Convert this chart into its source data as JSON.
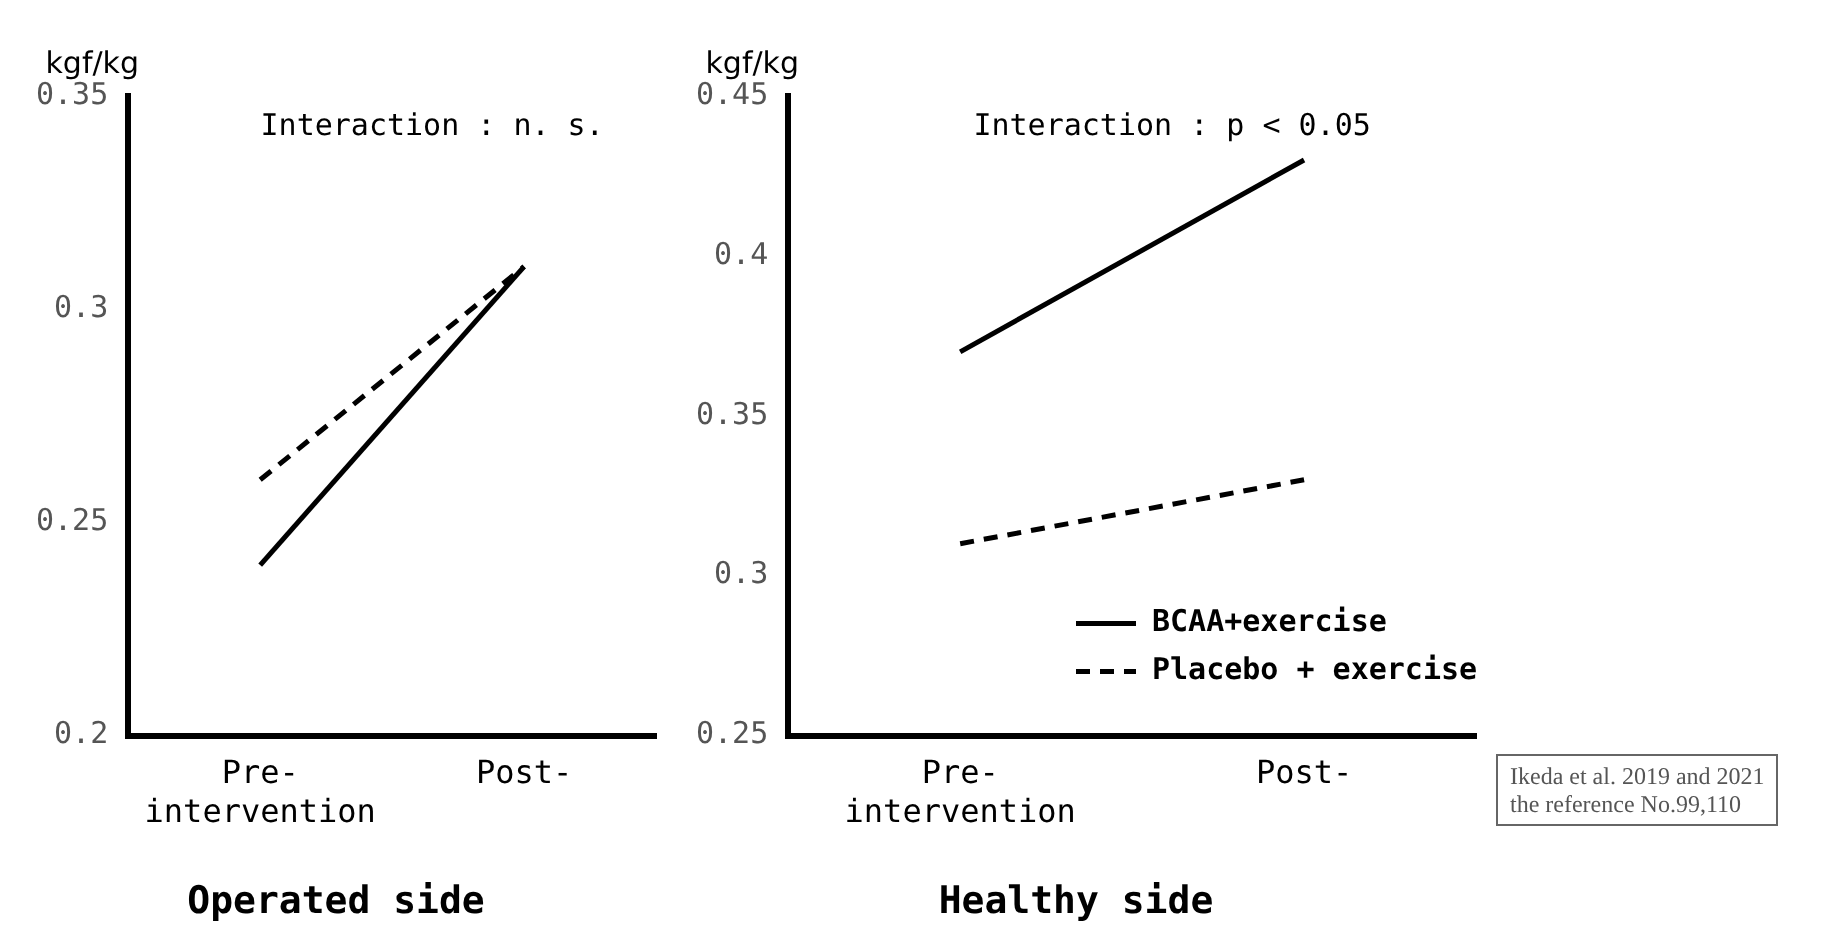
{
  "chart_data": [
    {
      "type": "line",
      "title": "Operated side",
      "ylabel": "kgf/kg",
      "categories": [
        "Pre-\nintervention",
        "Post-"
      ],
      "ylim": [
        0.2,
        0.35
      ],
      "yticks": [
        0.2,
        0.25,
        0.3,
        0.35
      ],
      "grid": false,
      "legend": false,
      "marker": "none",
      "annotations": [
        "Interaction : n. s."
      ],
      "series": [
        {
          "color": "#000000",
          "line_style": "solid",
          "values": [
            0.24,
            0.31
          ]
        },
        {
          "color": "#000000",
          "line_style": "dashed",
          "values": [
            0.26,
            0.31
          ]
        }
      ]
    },
    {
      "type": "line",
      "title": "Healthy side",
      "ylabel": "kgf/kg",
      "categories": [
        "Pre-\nintervention",
        "Post-"
      ],
      "ylim": [
        0.25,
        0.45
      ],
      "yticks": [
        0.25,
        0.3,
        0.35,
        0.4,
        0.45
      ],
      "grid": false,
      "legend": "bottom right",
      "marker": "none",
      "annotations": [
        "Interaction : p < 0.05",
        "Ikeda et al. 2019 and 2021\nthe reference No.99,110"
      ],
      "series": [
        {
          "name": "BCAA+exercise",
          "color": "#000000",
          "line_style": "solid",
          "values": [
            0.37,
            0.43
          ]
        },
        {
          "name": "Placebo + exercise",
          "color": "#000000",
          "line_style": "dashed",
          "values": [
            0.31,
            0.33
          ]
        }
      ]
    }
  ]
}
